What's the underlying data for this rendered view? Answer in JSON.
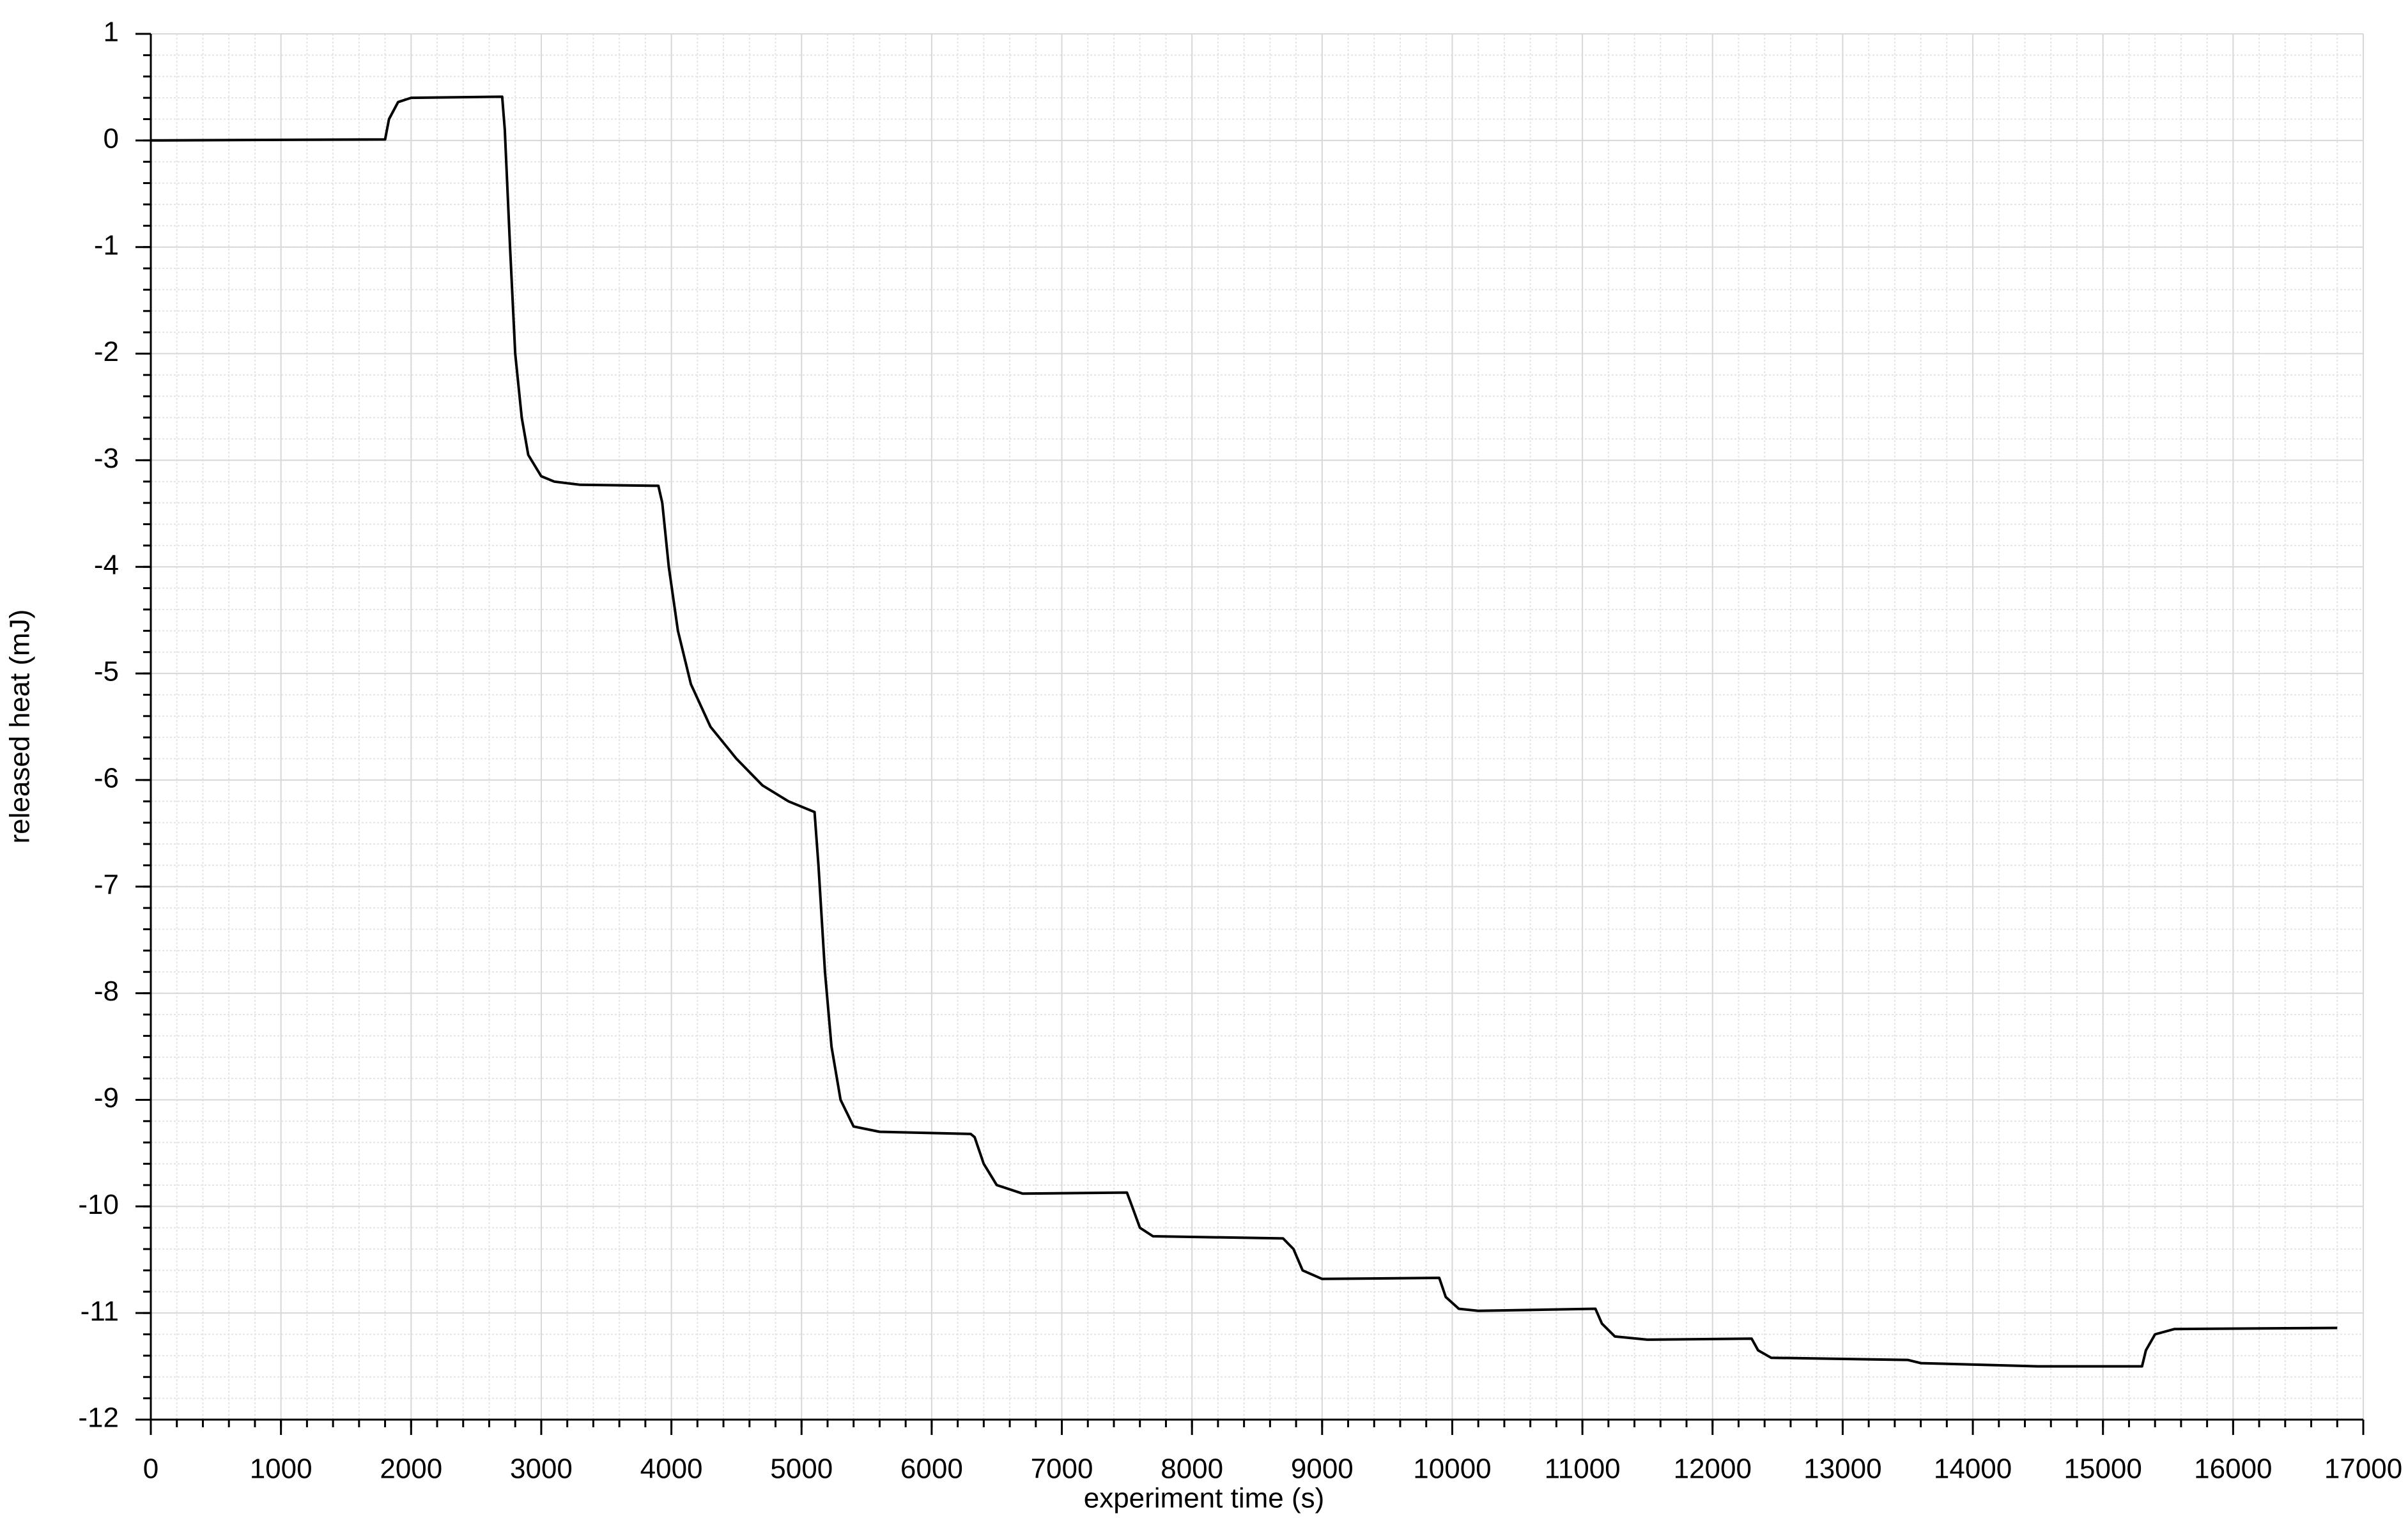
{
  "chart_data": {
    "type": "line",
    "x_label": "experiment time (s)",
    "y_label": "released heat (mJ)",
    "series": [
      {
        "color": "#000000",
        "x": [
          0,
          1800,
          1830,
          1900,
          2000,
          2700,
          2720,
          2760,
          2800,
          2850,
          2900,
          3000,
          3100,
          3300,
          3900,
          3930,
          3980,
          4050,
          4150,
          4300,
          4500,
          4700,
          4900,
          5100,
          5130,
          5180,
          5230,
          5300,
          5400,
          5600,
          6300,
          6330,
          6400,
          6500,
          6700,
          7500,
          7540,
          7600,
          7700,
          8700,
          8780,
          8850,
          9000,
          9900,
          9950,
          10050,
          10200,
          11100,
          11150,
          11250,
          11500,
          12300,
          12350,
          12450,
          13500,
          13600,
          14500,
          15300,
          15330,
          15400,
          15550,
          16800
        ],
        "values": [
          0,
          0.01,
          0.2,
          0.36,
          0.4,
          0.41,
          0.1,
          -1,
          -2,
          -2.6,
          -2.95,
          -3.15,
          -3.2,
          -3.23,
          -3.24,
          -3.4,
          -4,
          -4.6,
          -5.1,
          -5.5,
          -5.8,
          -6.05,
          -6.2,
          -6.3,
          -6.8,
          -7.8,
          -8.5,
          -9.0,
          -9.25,
          -9.3,
          -9.32,
          -9.35,
          -9.6,
          -9.8,
          -9.88,
          -9.87,
          -10.0,
          -10.2,
          -10.28,
          -10.3,
          -10.4,
          -10.6,
          -10.68,
          -10.67,
          -10.85,
          -10.96,
          -10.98,
          -10.96,
          -11.1,
          -11.22,
          -11.25,
          -11.24,
          -11.35,
          -11.42,
          -11.44,
          -11.47,
          -11.5,
          -11.5,
          -11.35,
          -11.2,
          -11.15,
          -11.14
        ]
      }
    ],
    "xlim": [
      0,
      17000
    ],
    "xticks": [
      0,
      1000,
      2000,
      3000,
      4000,
      5000,
      6000,
      7000,
      8000,
      9000,
      10000,
      11000,
      12000,
      13000,
      14000,
      15000,
      16000,
      17000
    ],
    "ylim": [
      -12,
      1
    ],
    "yticks": [
      -12,
      -11,
      -10,
      -9,
      -8,
      -7,
      -6,
      -5,
      -4,
      -3,
      -2,
      -1,
      0,
      1
    ],
    "x_minor_step": 200,
    "y_minor_step": 0.2,
    "grid": true
  }
}
